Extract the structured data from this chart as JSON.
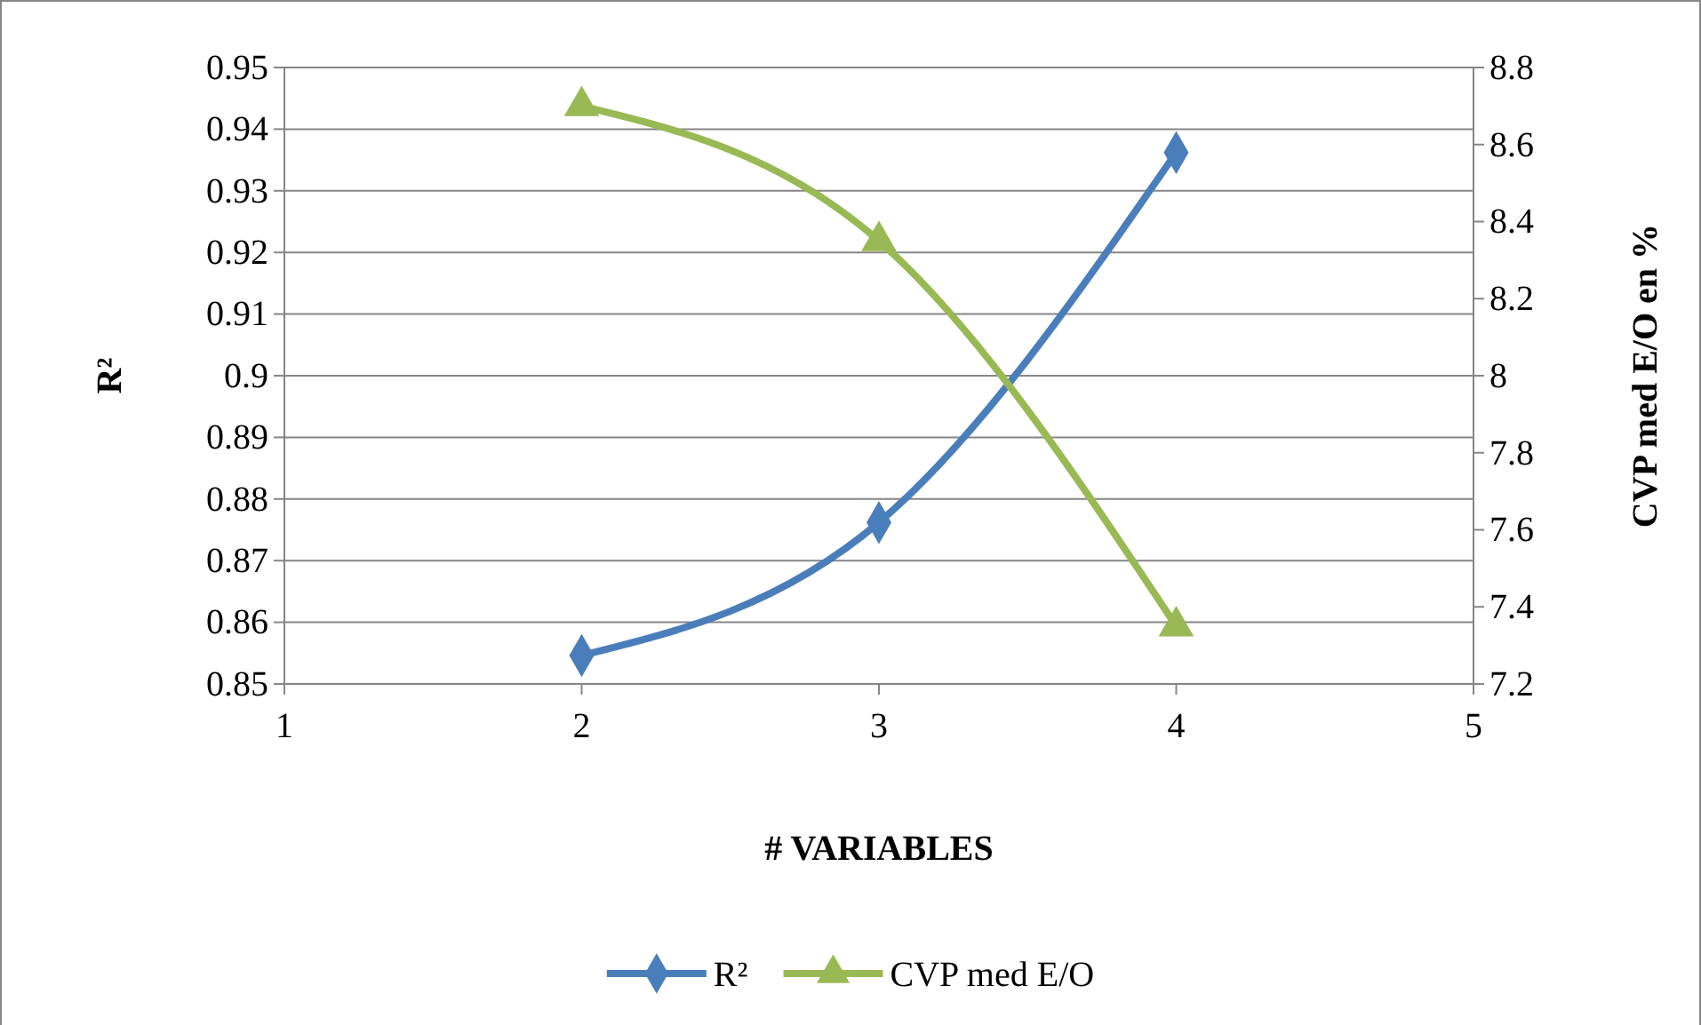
{
  "chart_data": {
    "type": "line",
    "xlabel": "# VARIABLES",
    "ylabel": "R²",
    "y2label": "CVP med E/O en %",
    "xlim": [
      1,
      5
    ],
    "xticks": [
      1,
      2,
      3,
      4,
      5
    ],
    "ylim": [
      0.85,
      0.95
    ],
    "yticks": [
      0.85,
      0.86,
      0.87,
      0.88,
      0.89,
      {
        "value": 0.9,
        "label": "0.9"
      },
      0.91,
      0.92,
      0.93,
      0.94,
      0.95
    ],
    "y2lim": [
      7.2,
      8.8
    ],
    "y2ticks": [
      7.2,
      7.4,
      7.6,
      7.8,
      {
        "value": 8,
        "label": "8"
      },
      8.2,
      8.4,
      8.6,
      8.8
    ],
    "grid": "y",
    "legend": "bottom",
    "series": [
      {
        "name": "R²",
        "color": "#4a7ebb",
        "marker": "diamond",
        "x": [
          2,
          3,
          4
        ],
        "values": [
          0.8546,
          0.8762,
          0.9362
        ]
      },
      {
        "name": "CVP med E/O",
        "color": "#98b954",
        "marker": "triangle",
        "axis": "y2",
        "x": [
          2,
          3,
          4
        ],
        "values": [
          8.7,
          8.35,
          7.35
        ]
      }
    ]
  }
}
